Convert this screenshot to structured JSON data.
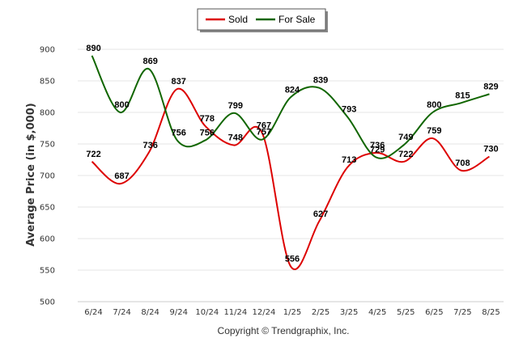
{
  "chart_data": {
    "type": "line",
    "categories": [
      "6/24",
      "7/24",
      "8/24",
      "9/24",
      "10/24",
      "11/24",
      "12/24",
      "1/25",
      "2/25",
      "3/25",
      "4/25",
      "5/25",
      "6/25",
      "7/25",
      "8/25"
    ],
    "series": [
      {
        "name": "Sold",
        "color": "#dd0000",
        "values": [
          722,
          687,
          736,
          837,
          778,
          748,
          767,
          556,
          627,
          713,
          736,
          722,
          759,
          708,
          730
        ]
      },
      {
        "name": "For Sale",
        "color": "#116600",
        "values": [
          890,
          800,
          869,
          756,
          756,
          799,
          757,
          824,
          839,
          793,
          729,
          749,
          800,
          815,
          829
        ]
      }
    ],
    "ylabel": "Average Price (in $,000)",
    "ylim": [
      500,
      900
    ],
    "yticks": [
      500,
      550,
      600,
      650,
      700,
      750,
      800,
      850,
      900
    ],
    "grid": true,
    "legend_position": "top-center",
    "copyright": "Copyright © Trendgraphix, Inc."
  }
}
